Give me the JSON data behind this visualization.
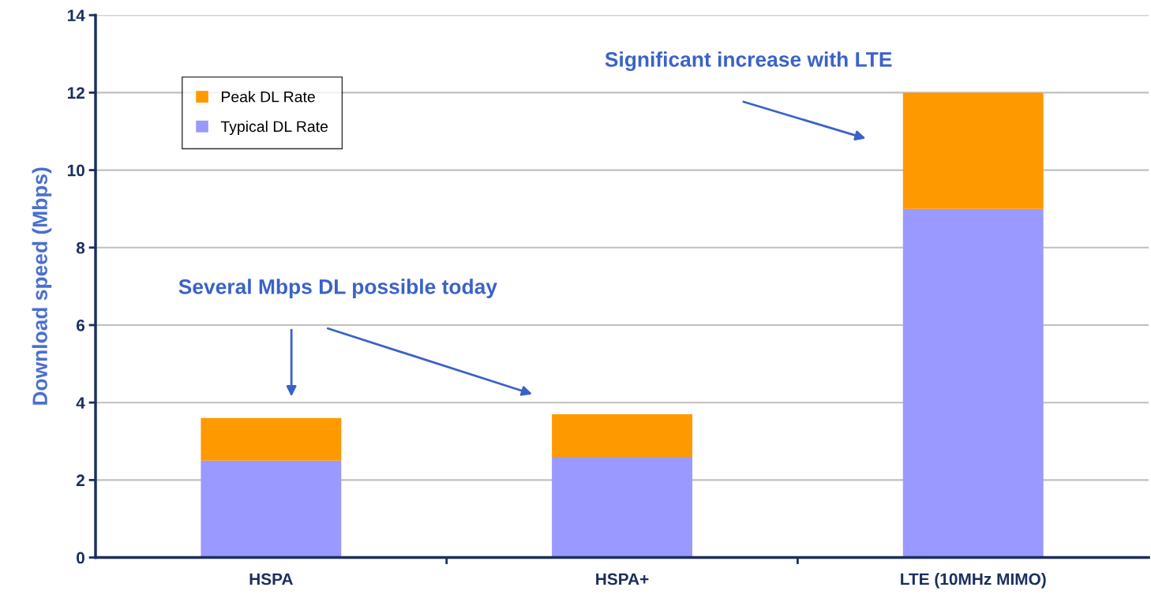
{
  "chart_data": {
    "type": "bar",
    "stacked": true,
    "ylabel": "Download speed (Mbps)",
    "categories": [
      "HSPA",
      "HSPA+",
      "LTE (10MHz MIMO)"
    ],
    "series": [
      {
        "name": "Typical DL Rate",
        "color": "#9999ff",
        "values": [
          2.5,
          2.6,
          9
        ]
      },
      {
        "name": "Peak DL Rate",
        "color": "#ff9900",
        "values": [
          1.1,
          1.1,
          3
        ]
      }
    ],
    "ylim": [
      0,
      14
    ],
    "yticks": [
      0,
      2,
      4,
      6,
      8,
      10,
      12,
      14
    ],
    "grid": "y",
    "legend": "top left",
    "annotations": [
      "Several Mbps DL possible today",
      "Significant increase with LTE"
    ]
  }
}
